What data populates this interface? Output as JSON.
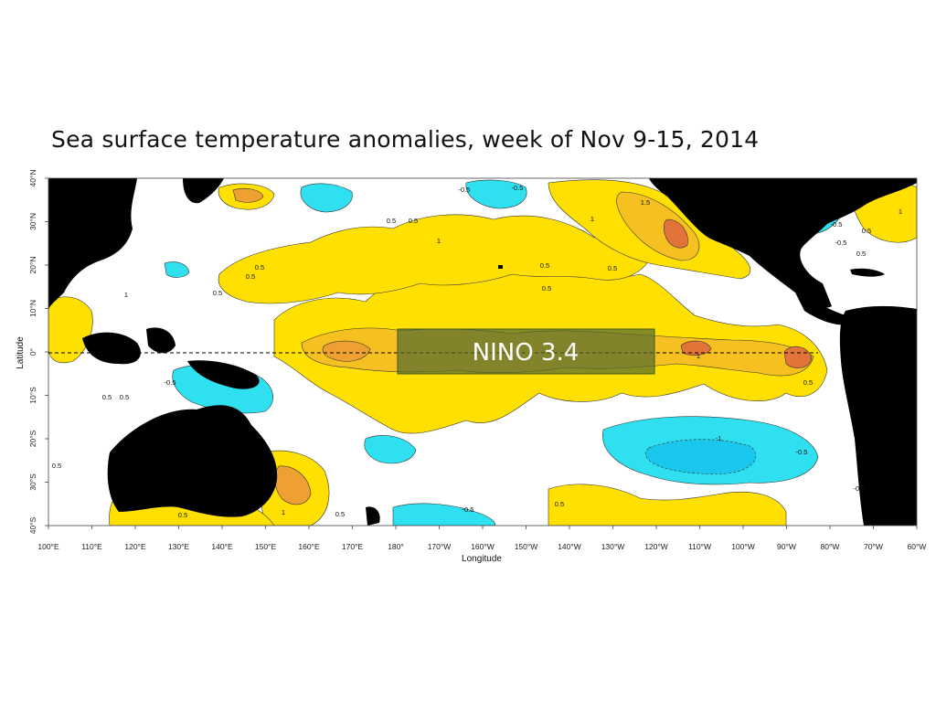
{
  "title": "Sea surface temperature anomalies, week of Nov 9-15, 2014",
  "map": {
    "xlabel": "Longitude",
    "ylabel": "Latitude",
    "x_ticks": [
      "100°E",
      "110°E",
      "120°E",
      "130°E",
      "140°E",
      "150°E",
      "160°E",
      "170°E",
      "180°",
      "170°W",
      "160°W",
      "150°W",
      "140°W",
      "130°W",
      "120°W",
      "110°W",
      "100°W",
      "90°W",
      "80°W",
      "70°W",
      "60°W"
    ],
    "y_ticks": [
      "40°N",
      "30°N",
      "20°N",
      "10°N",
      "0°",
      "10°S",
      "20°S",
      "30°S",
      "40°S"
    ],
    "region_box": {
      "label": "NINO 3.4",
      "lon_range": [
        "170°W",
        "120°W"
      ],
      "lat_range": [
        "5°N",
        "5°S"
      ]
    },
    "equator_line": "dashed",
    "contour_labels": [
      "-0.5",
      "1.5",
      "1",
      "0.5",
      "1",
      "0.5",
      "0.5",
      "0.5",
      "0.5",
      "1",
      "0.5",
      "-0.5",
      "0.5",
      "-1",
      "-0.5",
      "0.5",
      "0.5",
      "1",
      "0.5",
      "0.5",
      "0.5",
      "-0.5",
      "0.5",
      "0.5",
      "-0.5",
      "0.5",
      "0.5",
      "-0.5",
      "-0.5",
      "1",
      "1",
      "-0.5",
      "0.5"
    ],
    "colors": {
      "warm_1": "#ffe000",
      "warm_2": "#f6c020",
      "warm_3": "#eea032",
      "warm_4": "#e2743a",
      "cool_1": "#2ee0f0",
      "cool_2": "#1ac8ee",
      "land": "#000000",
      "neutral": "#ffffff",
      "box": "#556b2f"
    }
  }
}
